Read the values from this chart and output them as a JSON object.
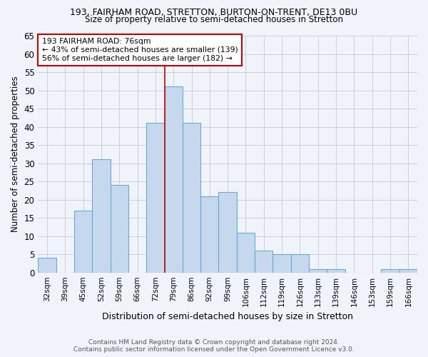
{
  "title1": "193, FAIRHAM ROAD, STRETTON, BURTON-ON-TRENT, DE13 0BU",
  "title2": "Size of property relative to semi-detached houses in Stretton",
  "xlabel": "Distribution of semi-detached houses by size in Stretton",
  "ylabel": "Number of semi-detached properties",
  "footer1": "Contains HM Land Registry data © Crown copyright and database right 2024.",
  "footer2": "Contains public sector information licensed under the Open Government Licence v3.0.",
  "categories": [
    "32sqm",
    "39sqm",
    "45sqm",
    "52sqm",
    "59sqm",
    "66sqm",
    "72sqm",
    "79sqm",
    "86sqm",
    "92sqm",
    "99sqm",
    "106sqm",
    "112sqm",
    "119sqm",
    "126sqm",
    "133sqm",
    "139sqm",
    "146sqm",
    "153sqm",
    "159sqm",
    "166sqm"
  ],
  "values": [
    4,
    0,
    17,
    31,
    24,
    0,
    41,
    51,
    41,
    21,
    22,
    11,
    6,
    5,
    5,
    1,
    1,
    0,
    0,
    1,
    1
  ],
  "bar_color": "#c5d8ed",
  "bar_edge_color": "#6aaad4",
  "annotation_label": "193 FAIRHAM ROAD: 76sqm",
  "annotation_smaller": "← 43% of semi-detached houses are smaller (139)",
  "annotation_larger": "56% of semi-detached houses are larger (182) →",
  "annotation_box_color": "#ffffff",
  "annotation_box_edge": "#cc0000",
  "vline_bin_index": 7,
  "vline_color": "#cc0000",
  "ylim": [
    0,
    65
  ],
  "yticks": [
    0,
    5,
    10,
    15,
    20,
    25,
    30,
    35,
    40,
    45,
    50,
    55,
    60,
    65
  ],
  "background_color": "#f0f4fa",
  "grid_color": "#c8d0dc"
}
